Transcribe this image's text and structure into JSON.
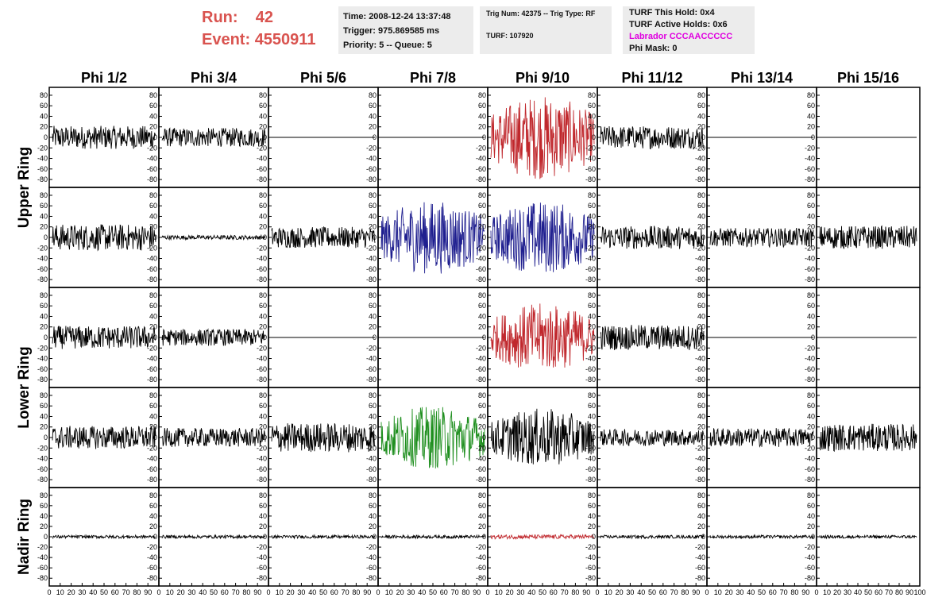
{
  "header": {
    "run_label": "Run:",
    "run_value": "42",
    "event_label": "Event:",
    "event_value": "4550911",
    "time": "Time: 2008-12-24 13:37:48",
    "trigger": "Trigger: 975.869585 ms",
    "priority": "Priority: 5 -- Queue: 5",
    "trig_num": "Trig Num: 42375 -- Trig Type: RF",
    "turf": "TURF: 107920",
    "turf_this_hold": "TURF This Hold: 0x4",
    "turf_active_holds": "TURF Active Holds: 0x6",
    "labrador": "Labrador CCCAACCCCC",
    "phi_mask": "Phi Mask: 0",
    "colors": {
      "run_text": "#d9534f",
      "labrador_text": "#e000e0",
      "box_bg": "#ececec"
    }
  },
  "chart_data": {
    "type": "line",
    "phi_sectors": [
      "Phi 1/2",
      "Phi 3/4",
      "Phi 5/6",
      "Phi 7/8",
      "Phi 9/10",
      "Phi 11/12",
      "Phi 13/14",
      "Phi 15/16"
    ],
    "ring_labels": [
      {
        "name": "Upper Ring",
        "rows": [
          0,
          1
        ]
      },
      {
        "name": "Lower Ring",
        "rows": [
          2,
          3
        ]
      },
      {
        "name": "Nadir Ring",
        "rows": [
          4
        ]
      }
    ],
    "ylim": [
      -95,
      95
    ],
    "y_ticks": [
      80,
      60,
      40,
      20,
      0,
      -20,
      -40,
      -60,
      -80
    ],
    "xlim": [
      0,
      100
    ],
    "x_ticks": [
      0,
      10,
      20,
      30,
      40,
      50,
      60,
      70,
      80,
      90,
      100
    ],
    "colors": {
      "normal": "#000000",
      "triggered": "#c0282d",
      "l1": "#1f1f8f",
      "l2": "#1f8f1f"
    },
    "rows": [
      [
        {
          "amplitude": 22,
          "color": "normal"
        },
        {
          "amplitude": 18,
          "color": "normal"
        },
        {
          "amplitude": 0,
          "color": "normal"
        },
        {
          "amplitude": 0,
          "color": "normal"
        },
        {
          "amplitude": 80,
          "color": "triggered"
        },
        {
          "amplitude": 22,
          "color": "normal"
        },
        {
          "amplitude": 0,
          "color": "normal"
        },
        {
          "amplitude": 0,
          "color": "normal"
        }
      ],
      [
        {
          "amplitude": 25,
          "color": "normal"
        },
        {
          "amplitude": 4,
          "color": "normal"
        },
        {
          "amplitude": 20,
          "color": "normal"
        },
        {
          "amplitude": 70,
          "color": "l1"
        },
        {
          "amplitude": 70,
          "color": "l1"
        },
        {
          "amplitude": 22,
          "color": "normal"
        },
        {
          "amplitude": 18,
          "color": "normal"
        },
        {
          "amplitude": 22,
          "color": "normal"
        }
      ],
      [
        {
          "amplitude": 22,
          "color": "normal"
        },
        {
          "amplitude": 16,
          "color": "normal"
        },
        {
          "amplitude": 0,
          "color": "normal"
        },
        {
          "amplitude": 0,
          "color": "normal"
        },
        {
          "amplitude": 65,
          "color": "triggered"
        },
        {
          "amplitude": 24,
          "color": "normal"
        },
        {
          "amplitude": 0,
          "color": "normal"
        },
        {
          "amplitude": 0,
          "color": "normal"
        }
      ],
      [
        {
          "amplitude": 22,
          "color": "normal"
        },
        {
          "amplitude": 18,
          "color": "normal"
        },
        {
          "amplitude": 28,
          "color": "normal"
        },
        {
          "amplitude": 60,
          "color": "l2"
        },
        {
          "amplitude": 55,
          "color": "normal"
        },
        {
          "amplitude": 16,
          "color": "normal"
        },
        {
          "amplitude": 18,
          "color": "normal"
        },
        {
          "amplitude": 26,
          "color": "normal"
        }
      ],
      [
        {
          "amplitude": 3,
          "color": "normal"
        },
        {
          "amplitude": 3,
          "color": "normal"
        },
        {
          "amplitude": 3,
          "color": "normal"
        },
        {
          "amplitude": 3,
          "color": "normal"
        },
        {
          "amplitude": 4,
          "color": "triggered"
        },
        {
          "amplitude": 3,
          "color": "normal"
        },
        {
          "amplitude": 3,
          "color": "normal"
        },
        {
          "amplitude": 3,
          "color": "normal"
        }
      ]
    ]
  }
}
